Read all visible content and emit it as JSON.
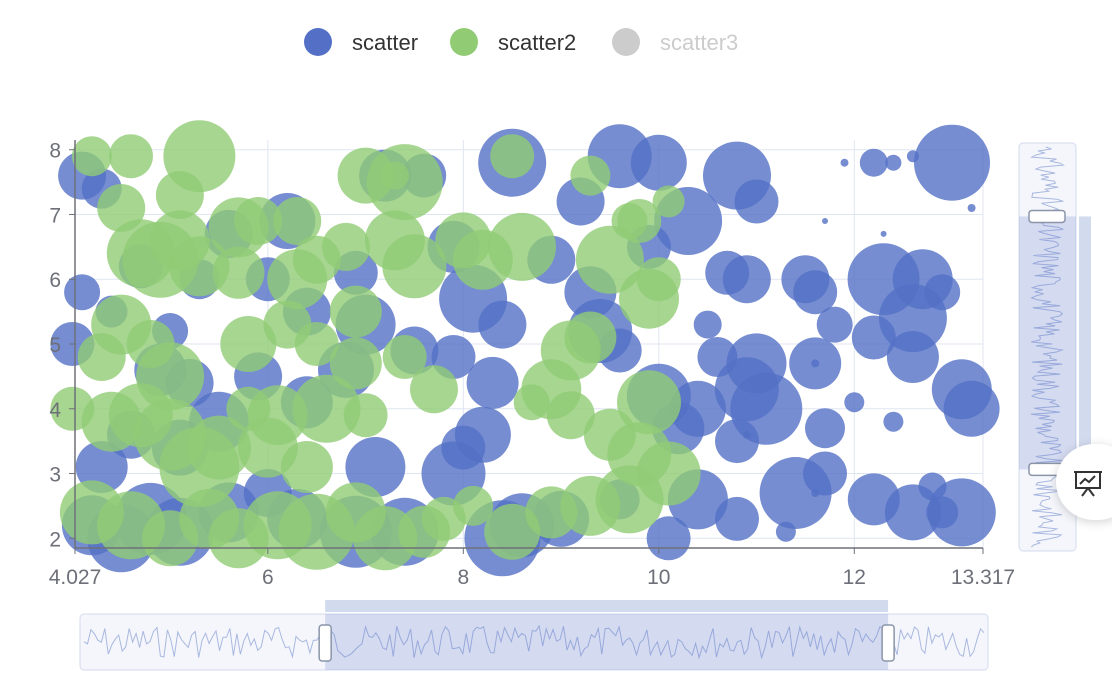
{
  "chart_data": {
    "type": "scatter",
    "subtype": "bubble",
    "legend_position": "top-center",
    "grid": true,
    "xlim": [
      4.027,
      13.317
    ],
    "ylim": [
      1.85,
      8.15
    ],
    "x_ticks": [
      "4.027",
      "6",
      "8",
      "10",
      "12",
      "13.317"
    ],
    "y_ticks": [
      "2",
      "3",
      "4",
      "5",
      "6",
      "7",
      "8"
    ],
    "series": [
      {
        "name": "scatter",
        "color": "#5470c6",
        "visible": true,
        "points": [
          [
            4.1,
            7.6,
            24
          ],
          [
            4.3,
            7.4,
            20
          ],
          [
            4.1,
            5.8,
            18
          ],
          [
            4.0,
            5.0,
            22
          ],
          [
            4.4,
            5.5,
            16
          ],
          [
            4.7,
            6.2,
            22
          ],
          [
            5.0,
            5.2,
            18
          ],
          [
            5.3,
            6.0,
            20
          ],
          [
            5.6,
            6.7,
            24
          ],
          [
            6.2,
            6.9,
            28
          ],
          [
            6.9,
            6.1,
            22
          ],
          [
            7.2,
            7.6,
            26
          ],
          [
            7.6,
            7.6,
            22
          ],
          [
            7.9,
            6.5,
            26
          ],
          [
            8.1,
            5.7,
            34
          ],
          [
            8.4,
            5.3,
            24
          ],
          [
            8.5,
            7.8,
            34
          ],
          [
            9.2,
            7.2,
            24
          ],
          [
            9.6,
            7.9,
            32
          ],
          [
            10.0,
            7.8,
            28
          ],
          [
            10.3,
            6.9,
            34
          ],
          [
            10.8,
            7.6,
            34
          ],
          [
            11.0,
            7.2,
            22
          ],
          [
            10.7,
            6.1,
            22
          ],
          [
            10.9,
            6.0,
            24
          ],
          [
            11.5,
            6.0,
            24
          ],
          [
            12.2,
            7.8,
            14
          ],
          [
            12.4,
            7.8,
            8
          ],
          [
            13.0,
            7.8,
            38
          ],
          [
            12.3,
            6.0,
            36
          ],
          [
            12.7,
            6.0,
            30
          ],
          [
            12.9,
            5.8,
            18
          ],
          [
            12.6,
            5.4,
            34
          ],
          [
            12.2,
            5.1,
            22
          ],
          [
            12.6,
            4.8,
            26
          ],
          [
            11.6,
            5.8,
            22
          ],
          [
            11.8,
            5.3,
            18
          ],
          [
            11.6,
            4.7,
            26
          ],
          [
            11.7,
            3.7,
            20
          ],
          [
            10.5,
            5.3,
            14
          ],
          [
            10.6,
            4.8,
            20
          ],
          [
            11.0,
            4.7,
            30
          ],
          [
            10.9,
            4.3,
            32
          ],
          [
            11.1,
            4.0,
            36
          ],
          [
            10.4,
            4.0,
            28
          ],
          [
            10.0,
            4.2,
            32
          ],
          [
            10.2,
            3.7,
            26
          ],
          [
            10.8,
            3.5,
            22
          ],
          [
            11.7,
            3.0,
            22
          ],
          [
            11.4,
            2.7,
            36
          ],
          [
            12.2,
            2.6,
            26
          ],
          [
            12.6,
            2.4,
            28
          ],
          [
            13.1,
            2.4,
            34
          ],
          [
            12.8,
            2.8,
            14
          ],
          [
            12.9,
            2.4,
            16
          ],
          [
            13.1,
            4.3,
            30
          ],
          [
            13.2,
            4.0,
            28
          ],
          [
            12.0,
            4.1,
            10
          ],
          [
            12.4,
            3.8,
            10
          ],
          [
            10.8,
            2.3,
            22
          ],
          [
            11.3,
            2.1,
            10
          ],
          [
            10.1,
            2.0,
            22
          ],
          [
            10.4,
            2.6,
            30
          ],
          [
            9.6,
            2.6,
            20
          ],
          [
            9.0,
            2.3,
            28
          ],
          [
            8.6,
            2.2,
            32
          ],
          [
            8.4,
            2.0,
            38
          ],
          [
            8.0,
            3.4,
            22
          ],
          [
            7.9,
            3.0,
            32
          ],
          [
            8.2,
            3.6,
            28
          ],
          [
            8.3,
            4.4,
            26
          ],
          [
            7.9,
            4.8,
            22
          ],
          [
            7.5,
            4.9,
            24
          ],
          [
            7.1,
            3.1,
            30
          ],
          [
            7.4,
            2.1,
            34
          ],
          [
            6.9,
            2.1,
            36
          ],
          [
            6.3,
            2.3,
            30
          ],
          [
            6.0,
            2.7,
            24
          ],
          [
            5.6,
            2.4,
            30
          ],
          [
            5.1,
            2.1,
            34
          ],
          [
            4.8,
            2.3,
            36
          ],
          [
            4.5,
            2.0,
            34
          ],
          [
            4.2,
            2.2,
            30
          ],
          [
            4.3,
            3.1,
            26
          ],
          [
            4.6,
            3.6,
            24
          ],
          [
            5.1,
            3.4,
            28
          ],
          [
            5.5,
            3.8,
            30
          ],
          [
            5.9,
            4.5,
            24
          ],
          [
            6.4,
            4.1,
            26
          ],
          [
            6.8,
            4.6,
            28
          ],
          [
            7.0,
            5.3,
            30
          ],
          [
            6.4,
            5.5,
            24
          ],
          [
            6.0,
            6.0,
            22
          ],
          [
            5.2,
            4.4,
            24
          ],
          [
            4.9,
            4.6,
            26
          ],
          [
            9.4,
            5.2,
            32
          ],
          [
            9.6,
            4.9,
            22
          ],
          [
            9.3,
            5.8,
            26
          ],
          [
            8.9,
            6.3,
            24
          ],
          [
            9.9,
            6.5,
            22
          ],
          [
            11.9,
            7.8,
            4
          ],
          [
            12.3,
            6.7,
            3
          ],
          [
            11.7,
            6.9,
            3
          ],
          [
            13.2,
            7.1,
            4
          ],
          [
            12.6,
            7.9,
            6
          ],
          [
            11.6,
            4.7,
            4
          ],
          [
            11.6,
            2.7,
            4
          ],
          [
            10.9,
            3.6,
            4
          ]
        ]
      },
      {
        "name": "scatter2",
        "color": "#91cc75",
        "visible": true,
        "points": [
          [
            4.2,
            7.9,
            20
          ],
          [
            4.6,
            7.9,
            22
          ],
          [
            5.3,
            7.9,
            36
          ],
          [
            5.1,
            7.3,
            24
          ],
          [
            4.5,
            7.1,
            24
          ],
          [
            4.7,
            6.4,
            34
          ],
          [
            4.9,
            6.3,
            38
          ],
          [
            5.3,
            6.2,
            30
          ],
          [
            5.7,
            6.8,
            30
          ],
          [
            5.9,
            6.9,
            24
          ],
          [
            6.3,
            6.9,
            24
          ],
          [
            6.5,
            6.3,
            24
          ],
          [
            7.0,
            7.6,
            28
          ],
          [
            7.4,
            7.5,
            38
          ],
          [
            7.3,
            6.6,
            30
          ],
          [
            7.5,
            6.2,
            32
          ],
          [
            8.0,
            6.6,
            28
          ],
          [
            8.2,
            6.3,
            30
          ],
          [
            8.6,
            6.5,
            34
          ],
          [
            8.5,
            7.9,
            22
          ],
          [
            9.3,
            7.6,
            20
          ],
          [
            9.5,
            6.3,
            34
          ],
          [
            9.9,
            5.7,
            30
          ],
          [
            9.7,
            6.9,
            18
          ],
          [
            9.3,
            5.1,
            26
          ],
          [
            9.1,
            4.9,
            30
          ],
          [
            8.9,
            4.3,
            30
          ],
          [
            9.1,
            3.9,
            24
          ],
          [
            9.5,
            3.6,
            26
          ],
          [
            9.9,
            4.1,
            32
          ],
          [
            9.8,
            3.3,
            32
          ],
          [
            10.1,
            3.0,
            32
          ],
          [
            9.7,
            2.6,
            34
          ],
          [
            9.3,
            2.5,
            30
          ],
          [
            8.9,
            2.4,
            26
          ],
          [
            8.5,
            2.1,
            28
          ],
          [
            8.1,
            2.5,
            20
          ],
          [
            7.8,
            2.3,
            22
          ],
          [
            7.7,
            4.3,
            24
          ],
          [
            7.4,
            4.8,
            22
          ],
          [
            6.9,
            4.7,
            26
          ],
          [
            7.0,
            3.9,
            22
          ],
          [
            6.6,
            4.0,
            34
          ],
          [
            6.1,
            3.9,
            30
          ],
          [
            5.8,
            4.0,
            22
          ],
          [
            5.5,
            3.4,
            32
          ],
          [
            5.3,
            3.1,
            40
          ],
          [
            5.0,
            3.6,
            36
          ],
          [
            4.7,
            3.9,
            32
          ],
          [
            4.4,
            3.8,
            30
          ],
          [
            4.3,
            4.8,
            24
          ],
          [
            4.5,
            5.3,
            30
          ],
          [
            4.8,
            5.0,
            24
          ],
          [
            5.0,
            4.5,
            34
          ],
          [
            4.0,
            4.0,
            22
          ],
          [
            4.2,
            2.4,
            32
          ],
          [
            4.6,
            2.2,
            34
          ],
          [
            5.0,
            2.0,
            28
          ],
          [
            5.4,
            2.3,
            30
          ],
          [
            5.7,
            2.0,
            30
          ],
          [
            6.1,
            2.2,
            34
          ],
          [
            6.5,
            2.1,
            38
          ],
          [
            6.9,
            2.4,
            30
          ],
          [
            7.2,
            2.0,
            32
          ],
          [
            7.6,
            2.1,
            26
          ],
          [
            6.4,
            3.1,
            26
          ],
          [
            6.0,
            3.4,
            30
          ],
          [
            5.8,
            5.0,
            28
          ],
          [
            6.2,
            5.3,
            24
          ],
          [
            6.5,
            5.0,
            22
          ],
          [
            6.9,
            5.5,
            26
          ],
          [
            6.3,
            6.0,
            30
          ],
          [
            6.8,
            6.5,
            24
          ],
          [
            5.7,
            6.1,
            26
          ],
          [
            5.1,
            6.6,
            30
          ],
          [
            10.0,
            6.0,
            22
          ],
          [
            9.8,
            6.9,
            22
          ],
          [
            8.7,
            4.1,
            18
          ],
          [
            7.3,
            7.6,
            14
          ],
          [
            10.1,
            7.2,
            16
          ]
        ]
      },
      {
        "name": "scatter3",
        "color": "#cccccc",
        "visible": false,
        "points": []
      }
    ]
  },
  "controls": {
    "x_zoom_window": [
      0.27,
      0.89
    ],
    "y_zoom_window": [
      0.2,
      0.82
    ],
    "fab_icon": "chart-presentation-icon"
  }
}
